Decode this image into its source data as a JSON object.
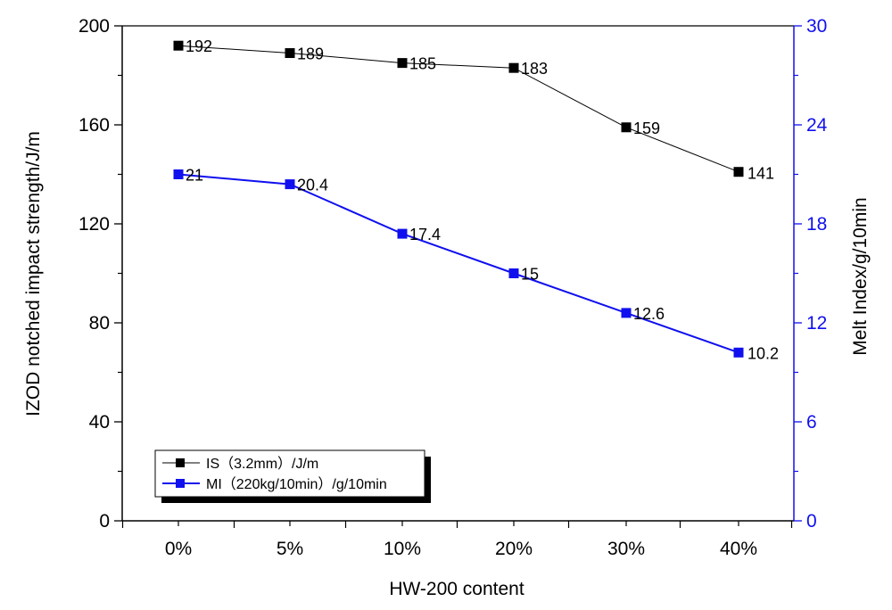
{
  "chart_data": {
    "type": "line",
    "categories": [
      "0%",
      "5%",
      "10%",
      "20%",
      "30%",
      "40%"
    ],
    "xlabel": "HW-200 content",
    "ylabel_left": "IZOD notched impact strength/J/m",
    "ylabel_right": "Melt Index/g/10min",
    "ylim_left": [
      0,
      200
    ],
    "yticks_left": [
      "0",
      "40",
      "80",
      "120",
      "160",
      "200"
    ],
    "ylim_right": [
      0,
      30
    ],
    "yticks_right": [
      "0",
      "6",
      "12",
      "18",
      "24",
      "30"
    ],
    "right_axis_color": "#1010ee",
    "grid": false,
    "legend_position": "bottom-left",
    "series": [
      {
        "name": "IS（3.2mm）/J/m",
        "axis": "left",
        "color": "#000000",
        "values": [
          192,
          189,
          185,
          183,
          159,
          141
        ],
        "labels": [
          "192",
          "189",
          "185",
          "183",
          "159",
          "141"
        ]
      },
      {
        "name": "MI（220kg/10min）/g/10min",
        "axis": "right",
        "color": "#1010ee",
        "values": [
          21,
          20.4,
          17.4,
          15,
          12.6,
          10.2
        ],
        "labels": [
          "21",
          "20.4",
          "17.4",
          "15",
          "12.6",
          "10.2"
        ]
      }
    ]
  }
}
